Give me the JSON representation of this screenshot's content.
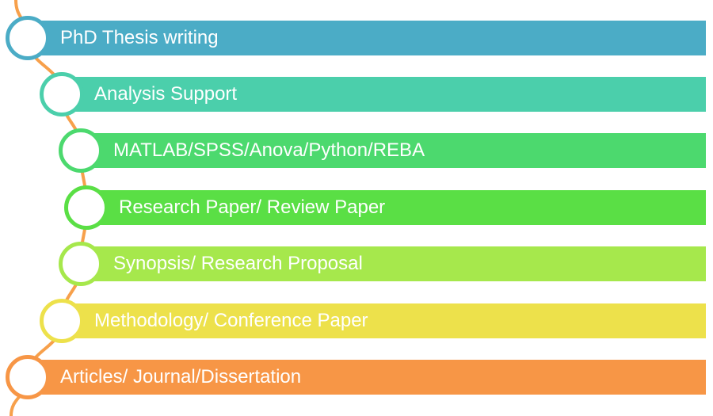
{
  "items": [
    {
      "label": "PhD Thesis writing",
      "color": "#4BACC6"
    },
    {
      "label": "Analysis Support",
      "color": "#4BCFAB"
    },
    {
      "label": "MATLAB/SPSS/Anova/Python/REBA",
      "color": "#4CD96E"
    },
    {
      "label": "Research Paper/ Review Paper",
      "color": "#5ADF45"
    },
    {
      "label": "Synopsis/ Research Proposal",
      "color": "#A6E84C"
    },
    {
      "label": "Methodology/ Conference Paper",
      "color": "#EDE14B"
    },
    {
      "label": "Articles/ Journal/Dissertation",
      "color": "#F79646"
    }
  ],
  "connector_color": "#F7A04B"
}
